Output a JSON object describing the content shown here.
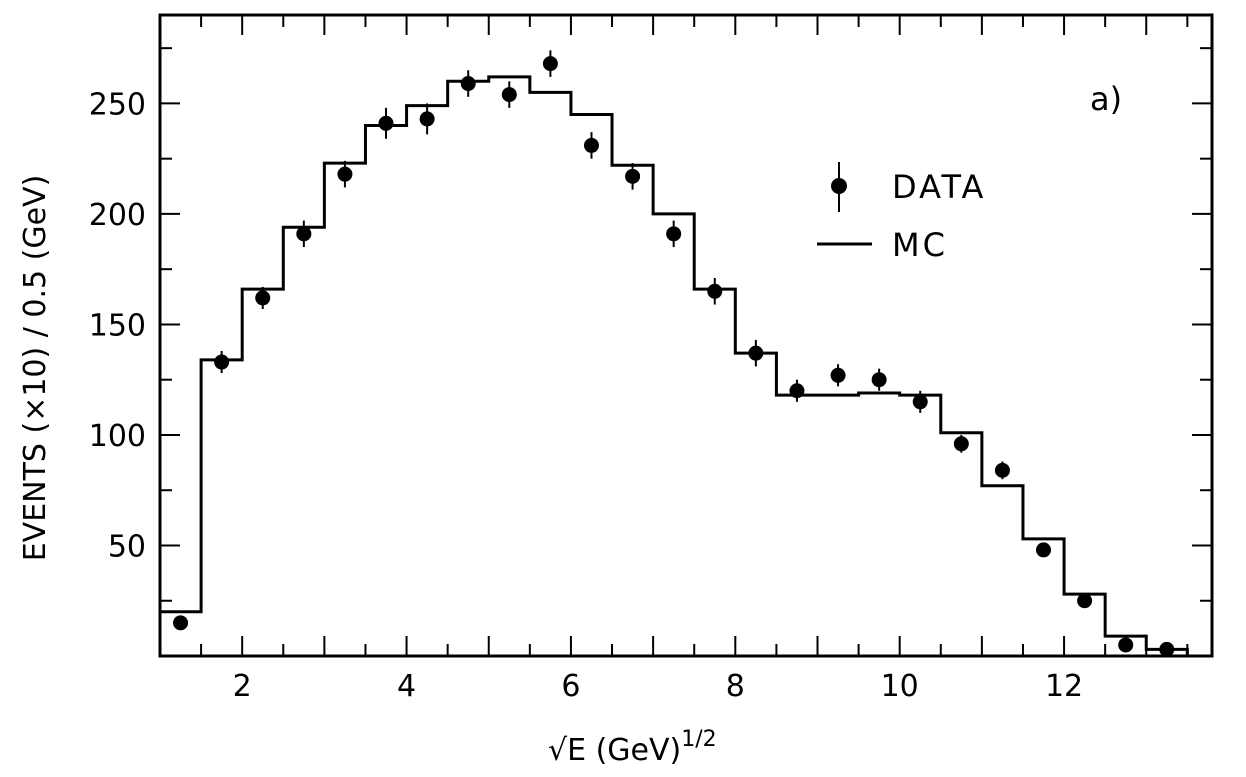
{
  "chart_data": {
    "type": "bar",
    "panel_label": "a)",
    "xlabel_main": "√E  (GeV)",
    "xlabel_exp": "1/2",
    "ylabel": "EVENTS (×10) / 0.5 (GeV)",
    "xlim": [
      1,
      13.8
    ],
    "ylim": [
      0,
      290
    ],
    "xticks": [
      2,
      4,
      6,
      8,
      10,
      12
    ],
    "yticks": [
      50,
      100,
      150,
      200,
      250
    ],
    "legend": {
      "placement": "upper-right",
      "data_label": "DATA",
      "mc_label": "MC"
    },
    "series": [
      {
        "name": "DATA",
        "style": "points-with-errorbars",
        "x": [
          1.25,
          1.75,
          2.25,
          2.75,
          3.25,
          3.75,
          4.25,
          4.75,
          5.25,
          5.75,
          6.25,
          6.75,
          7.25,
          7.75,
          8.25,
          8.75,
          9.25,
          9.75,
          10.25,
          10.75,
          11.25,
          11.75,
          12.25,
          12.75,
          13.25
        ],
        "y": [
          15,
          133,
          162,
          191,
          218,
          241,
          243,
          259,
          254,
          268,
          231,
          217,
          191,
          165,
          137,
          120,
          127,
          125,
          115,
          96,
          84,
          48,
          25,
          5,
          3
        ],
        "err": [
          3,
          5,
          5,
          6,
          6,
          7,
          7,
          6,
          6,
          6,
          6,
          6,
          6,
          6,
          6,
          5,
          5,
          5,
          5,
          4,
          4,
          3,
          3,
          2,
          2
        ]
      },
      {
        "name": "MC",
        "style": "step-histogram",
        "edges": [
          1.0,
          1.5,
          2.0,
          2.5,
          3.0,
          3.5,
          4.0,
          4.5,
          5.0,
          5.5,
          6.0,
          6.5,
          7.0,
          7.5,
          8.0,
          8.5,
          9.0,
          9.5,
          10.0,
          10.5,
          11.0,
          11.5,
          12.0,
          12.5,
          13.0,
          13.5
        ],
        "values": [
          20,
          134,
          166,
          194,
          223,
          240,
          249,
          260,
          262,
          255,
          245,
          222,
          200,
          166,
          137,
          118,
          118,
          119,
          118,
          101,
          77,
          53,
          28,
          9,
          3
        ]
      }
    ]
  }
}
